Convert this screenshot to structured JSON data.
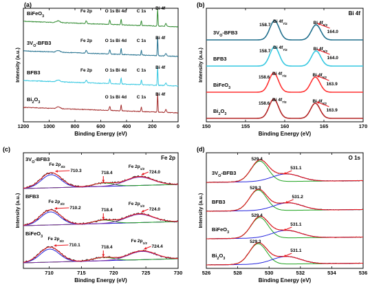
{
  "panels": [
    {
      "id": "a",
      "panel_label": "(a)",
      "xlabel": "Binding Energy (eV)",
      "ylabel": "Intensity (a.u.)",
      "xticks": [
        1200,
        1000,
        800,
        600,
        400,
        200,
        0
      ],
      "series": [
        {
          "name": "BiFeO3",
          "color": "#2f8a2f",
          "label_parts": [
            {
              "t": "BiFeO"
            },
            {
              "t": "3",
              "sub": true
            }
          ],
          "peaks": [
            {
              "t": "Fe 2p",
              "x": 712
            },
            {
              "t": "O 1s",
              "x": 530
            },
            {
              "t": "Bi 4d",
              "x": 442
            },
            {
              "t": "C 1s",
              "x": 285
            },
            {
              "t": "Bi 4f",
              "x": 159
            }
          ]
        },
        {
          "name": "3VO-BFB3",
          "color": "#1f6e8c",
          "label_parts": [
            {
              "t": "3V"
            },
            {
              "t": "O",
              "sub": true
            },
            {
              "t": "-BFB3"
            }
          ],
          "peaks": [
            {
              "t": "Fe 2p",
              "x": 712
            },
            {
              "t": "O 1s",
              "x": 530
            },
            {
              "t": "Bi 4d",
              "x": 442
            },
            {
              "t": "C 1s",
              "x": 285
            },
            {
              "t": "Bi 4f",
              "x": 159
            }
          ]
        },
        {
          "name": "BFB3",
          "color": "#33c7e0",
          "label_parts": [
            {
              "t": "BFB3"
            }
          ],
          "peaks": [
            {
              "t": "Fe 2p",
              "x": 712
            },
            {
              "t": "O 1s",
              "x": 530
            },
            {
              "t": "Bi 4d",
              "x": 442
            },
            {
              "t": "C 1s",
              "x": 285
            },
            {
              "t": "Bi 4f",
              "x": 159
            }
          ]
        },
        {
          "name": "Bi2O3",
          "color": "#a32a2a",
          "label_parts": [
            {
              "t": "Bi"
            },
            {
              "t": "2",
              "sub": true
            },
            {
              "t": "O"
            },
            {
              "t": "3",
              "sub": true
            }
          ],
          "peaks": [
            {
              "t": "O 1s",
              "x": 530
            },
            {
              "t": "Bi 4d",
              "x": 442
            },
            {
              "t": "C 1s",
              "x": 285
            },
            {
              "t": "Bi 4f",
              "x": 159
            }
          ]
        }
      ]
    },
    {
      "id": "b",
      "panel_label": "(b)",
      "corner_label": "Bi 4f",
      "xlabel": "Binding Energy (eV)",
      "ylabel": "Intensity (a.u.)",
      "xticks": [
        150,
        155,
        160,
        165,
        170
      ],
      "series": [
        {
          "name": "3VO-BFB3",
          "color": "#1f6e8c",
          "label_parts": [
            {
              "t": "3V"
            },
            {
              "t": "O",
              "sub": true
            },
            {
              "t": "-BFB3"
            }
          ],
          "peak_values": [
            "158.7",
            "164.0"
          ]
        },
        {
          "name": "BFB3",
          "color": "#33c7e0",
          "label_parts": [
            {
              "t": "BFB3"
            }
          ],
          "peak_values": [
            "158.7",
            "164.0"
          ]
        },
        {
          "name": "BiFeO3",
          "color": "#ff3030",
          "label_parts": [
            {
              "t": "BiFeO"
            },
            {
              "t": "3",
              "sub": true
            }
          ],
          "peak_values": [
            "158.6",
            "163.9"
          ]
        },
        {
          "name": "Bi2O3",
          "color": "#b22222",
          "label_parts": [
            {
              "t": "Bi"
            },
            {
              "t": "2",
              "sub": true
            },
            {
              "t": "O"
            },
            {
              "t": "3",
              "sub": true
            }
          ],
          "peak_values": [
            "158.6",
            "163.9"
          ]
        }
      ],
      "peak_labels": [
        [
          {
            "t": "Bi 4f"
          },
          {
            "t": "7/2",
            "sub": true
          }
        ],
        [
          {
            "t": "Bi 4f"
          },
          {
            "t": "5/2",
            "sub": true
          }
        ]
      ]
    },
    {
      "id": "c",
      "panel_label": "(c)",
      "corner_label": "Fe 2p",
      "xlabel": "Binding Energy (eV)",
      "ylabel": "Intensity (a.u.)",
      "xticks": [
        710,
        715,
        720,
        725,
        730
      ],
      "series": [
        {
          "name": "3VO-BFB3",
          "label_parts": [
            {
              "t": "3V"
            },
            {
              "t": "O",
              "sub": true
            },
            {
              "t": "-BFB3"
            }
          ],
          "peak_values": [
            "710.3",
            "718.4",
            "724.0"
          ]
        },
        {
          "name": "BFB3",
          "label_parts": [
            {
              "t": "BFB3"
            }
          ],
          "peak_values": [
            "710.2",
            "718.4",
            "724.0"
          ]
        },
        {
          "name": "BiFeO3",
          "label_parts": [
            {
              "t": "BiFeO"
            },
            {
              "t": "3",
              "sub": true
            }
          ],
          "peak_values": [
            "710.1",
            "718.4",
            "724.4"
          ]
        }
      ],
      "peak_labels": [
        [
          {
            "t": "Fe 2p"
          },
          {
            "t": "3/2",
            "sub": true
          }
        ],
        [
          {
            "t": "Fe 2p"
          },
          {
            "t": "1/2",
            "sub": true
          }
        ]
      ]
    },
    {
      "id": "d",
      "panel_label": "(d)",
      "corner_label": "O 1s",
      "xlabel": "Binding Energy (eV)",
      "ylabel": "Intensity (a.u.)",
      "xticks": [
        526,
        528,
        530,
        532,
        534,
        536
      ],
      "series": [
        {
          "name": "3VO-BFB3",
          "label_parts": [
            {
              "t": "3V"
            },
            {
              "t": "O",
              "sub": true
            },
            {
              "t": "-BFB3"
            }
          ],
          "peak_values": [
            "529.4",
            "531.1"
          ]
        },
        {
          "name": "BFB3",
          "label_parts": [
            {
              "t": "BFB3"
            }
          ],
          "peak_values": [
            "529.3",
            "531.2"
          ]
        },
        {
          "name": "BiFeO3",
          "label_parts": [
            {
              "t": "BiFeO"
            },
            {
              "t": "3",
              "sub": true
            }
          ],
          "peak_values": [
            "529.4",
            "531.1"
          ]
        },
        {
          "name": "Bi2O3",
          "label_parts": [
            {
              "t": "Bi"
            },
            {
              "t": "2",
              "sub": true
            },
            {
              "t": "O"
            },
            {
              "t": "3",
              "sub": true
            }
          ],
          "peak_values": [
            "529.3",
            "531.1"
          ]
        }
      ]
    }
  ],
  "chart_data": [
    {
      "type": "line",
      "panel": "(a)",
      "xlabel": "Binding Energy (eV)",
      "ylabel": "Intensity (a.u.)",
      "xlim": [
        1200,
        0
      ],
      "x_reversed": true,
      "xticks": [
        1200,
        1000,
        800,
        600,
        400,
        200,
        0
      ],
      "series": [
        {
          "name": "BiFeO3",
          "peaks": {
            "Fe 2p": 712,
            "O 1s": 530,
            "Bi 4d": 442,
            "C 1s": 285,
            "Bi 4f": 159
          }
        },
        {
          "name": "3VO-BFB3",
          "peaks": {
            "Fe 2p": 712,
            "O 1s": 530,
            "Bi 4d": 442,
            "C 1s": 285,
            "Bi 4f": 159
          }
        },
        {
          "name": "BFB3",
          "peaks": {
            "Fe 2p": 712,
            "O 1s": 530,
            "Bi 4d": 442,
            "C 1s": 285,
            "Bi 4f": 159
          }
        },
        {
          "name": "Bi2O3",
          "peaks": {
            "O 1s": 530,
            "Bi 4d": 442,
            "C 1s": 285,
            "Bi 4f": 159
          }
        }
      ]
    },
    {
      "type": "line",
      "panel": "(b)",
      "title": "Bi 4f",
      "xlabel": "Binding Energy (eV)",
      "ylabel": "Intensity (a.u.)",
      "xlim": [
        150,
        170
      ],
      "xticks": [
        150,
        155,
        160,
        165,
        170
      ],
      "series": [
        {
          "name": "3VO-BFB3",
          "peaks": {
            "Bi 4f7/2": 158.7,
            "Bi 4f5/2": 164.0
          }
        },
        {
          "name": "BFB3",
          "peaks": {
            "Bi 4f7/2": 158.7,
            "Bi 4f5/2": 164.0
          }
        },
        {
          "name": "BiFeO3",
          "peaks": {
            "Bi 4f7/2": 158.6,
            "Bi 4f5/2": 163.9
          }
        },
        {
          "name": "Bi2O3",
          "peaks": {
            "Bi 4f7/2": 158.6,
            "Bi 4f5/2": 163.9
          }
        }
      ]
    },
    {
      "type": "line",
      "panel": "(c)",
      "title": "Fe 2p",
      "xlabel": "Binding Energy (eV)",
      "ylabel": "Intensity (a.u.)",
      "xlim": [
        706,
        730
      ],
      "xticks": [
        710,
        715,
        720,
        725,
        730
      ],
      "series": [
        {
          "name": "3VO-BFB3",
          "peaks": {
            "Fe 2p3/2": 710.3,
            "satellite": 718.4,
            "Fe 2p1/2": 724.0
          }
        },
        {
          "name": "BFB3",
          "peaks": {
            "Fe 2p3/2": 710.2,
            "satellite": 718.4,
            "Fe 2p1/2": 724.0
          }
        },
        {
          "name": "BiFeO3",
          "peaks": {
            "Fe 2p3/2": 710.1,
            "satellite": 718.4,
            "Fe 2p1/2": 724.4
          }
        }
      ]
    },
    {
      "type": "line",
      "panel": "(d)",
      "title": "O 1s",
      "xlabel": "Binding Energy (eV)",
      "ylabel": "Intensity (a.u.)",
      "xlim": [
        526,
        536
      ],
      "xticks": [
        526,
        528,
        530,
        532,
        534,
        536
      ],
      "series": [
        {
          "name": "3VO-BFB3",
          "peaks": {
            "lattice O": 529.4,
            "surface O": 531.1
          }
        },
        {
          "name": "BFB3",
          "peaks": {
            "lattice O": 529.3,
            "surface O": 531.2
          }
        },
        {
          "name": "BiFeO3",
          "peaks": {
            "lattice O": 529.4,
            "surface O": 531.1
          }
        },
        {
          "name": "Bi2O3",
          "peaks": {
            "lattice O": 529.3,
            "surface O": 531.1
          }
        }
      ]
    }
  ]
}
